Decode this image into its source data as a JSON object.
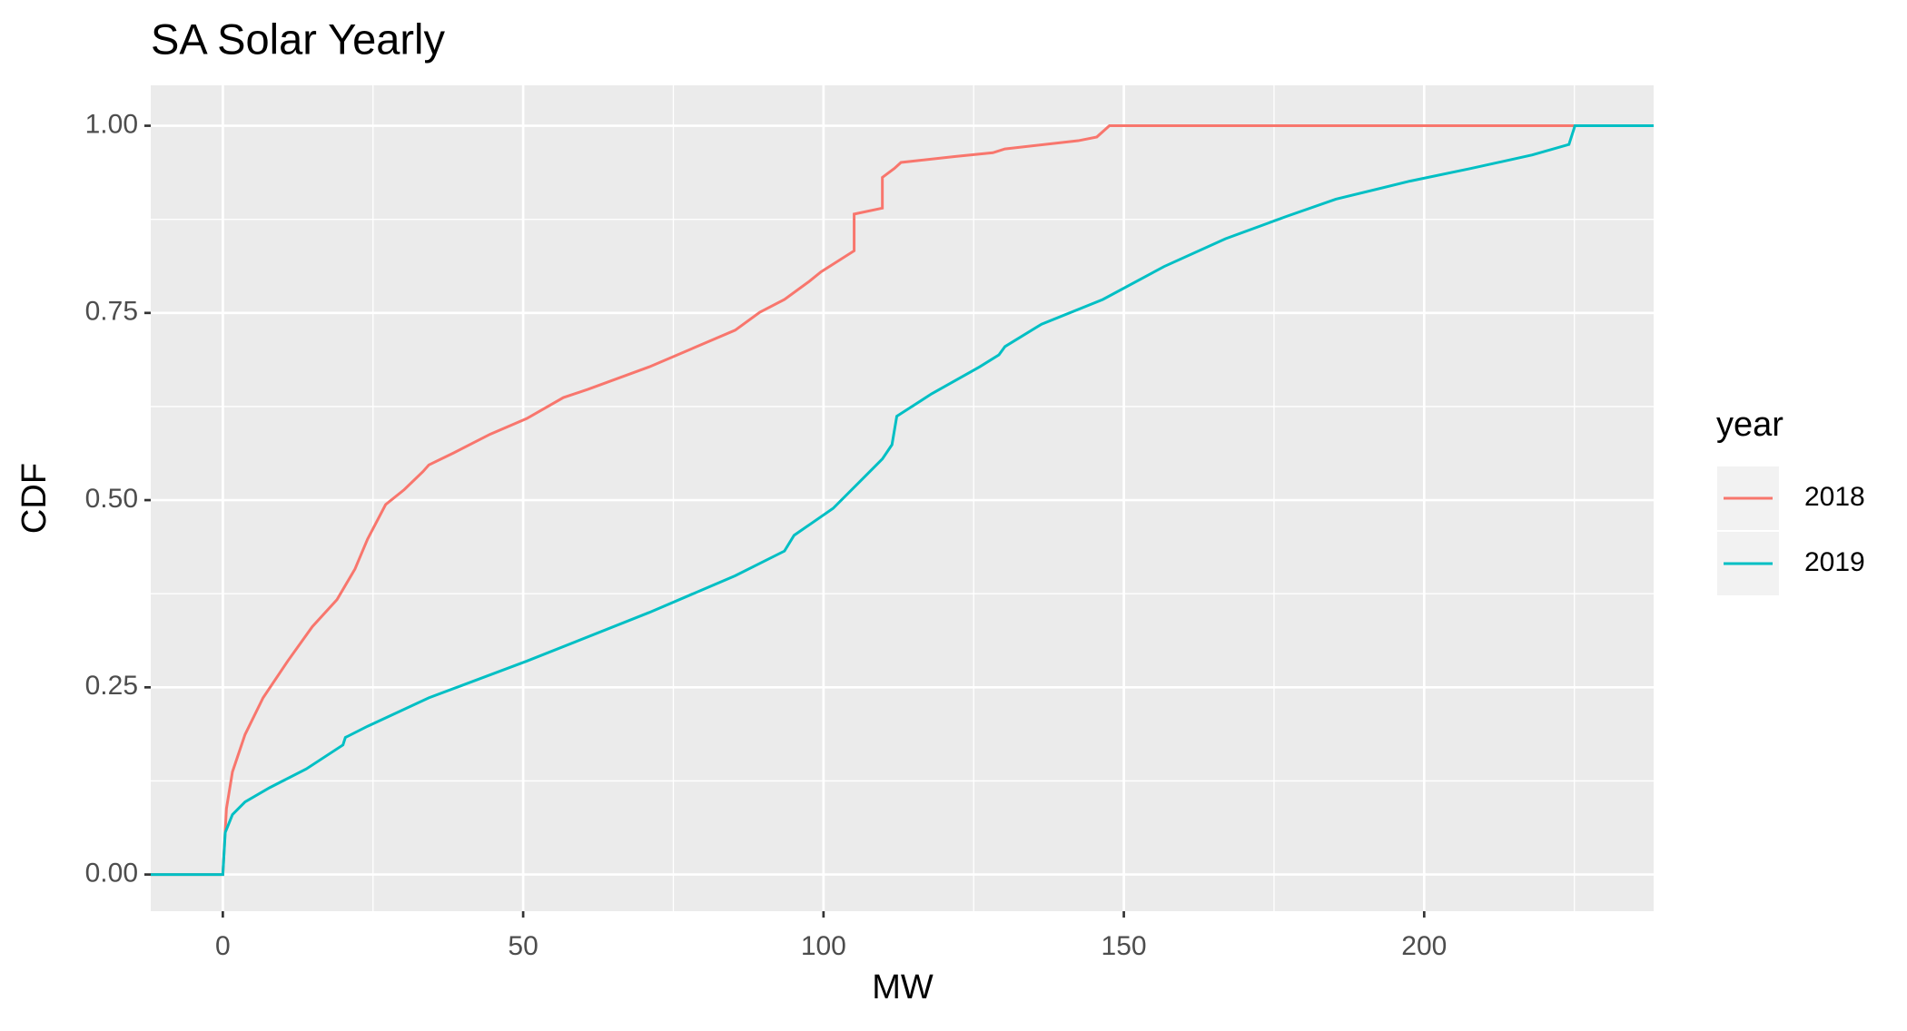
{
  "chart_data": {
    "type": "line",
    "title": "SA Solar Yearly",
    "x_label": "MW",
    "y_label": "CDF",
    "xlim": [
      -12,
      238.2
    ],
    "ylim": [
      -0.049,
      1.054
    ],
    "xticks": [
      0,
      50,
      100,
      150,
      200
    ],
    "yticks": [
      {
        "value": 0,
        "label": "0.00"
      },
      {
        "value": 0.25,
        "label": "0.25"
      },
      {
        "value": 0.5,
        "label": "0.50"
      },
      {
        "value": 0.75,
        "label": "0.75"
      },
      {
        "value": 1,
        "label": "1.00"
      }
    ],
    "xminor": [
      25,
      75,
      125,
      175,
      225
    ],
    "yminor": [
      0.125,
      0.375,
      0.625,
      0.875
    ],
    "grid": true,
    "legend_title": "year",
    "legend_position": "right",
    "series": [
      {
        "name": "2018",
        "color": "#F8766D",
        "x": [
          -12,
          0,
          0.6,
          1.6,
          3.7,
          6.7,
          10.8,
          14.9,
          19,
          22,
          24.1,
          27.1,
          30.2,
          33.3,
          34.3,
          38.4,
          44.5,
          50.6,
          56.7,
          60.8,
          71,
          85.3,
          89.4,
          93.5,
          97.6,
          99.6,
          105.1,
          105.1,
          109.8,
          109.8,
          111.8,
          112.9,
          122,
          128.2,
          130.2,
          142.4,
          145.5,
          147.6,
          238.2
        ],
        "values": [
          0,
          0,
          0.088,
          0.137,
          0.187,
          0.236,
          0.285,
          0.331,
          0.367,
          0.408,
          0.448,
          0.494,
          0.514,
          0.538,
          0.547,
          0.563,
          0.588,
          0.609,
          0.637,
          0.648,
          0.678,
          0.727,
          0.751,
          0.768,
          0.792,
          0.805,
          0.833,
          0.882,
          0.89,
          0.931,
          0.943,
          0.951,
          0.959,
          0.964,
          0.969,
          0.98,
          0.985,
          1,
          1
        ]
      },
      {
        "name": "2019",
        "color": "#00BFC4",
        "x": [
          -12,
          0,
          0.4,
          1.6,
          3.7,
          7.8,
          13.9,
          20,
          20.4,
          24.1,
          34.3,
          50.6,
          71,
          85.3,
          93.5,
          95.1,
          101.6,
          106.7,
          109.8,
          111.4,
          112.2,
          118,
          126,
          129.2,
          130.2,
          136.3,
          146.5,
          156.7,
          166.9,
          177.1,
          185.3,
          197.6,
          207.8,
          218,
          224.1,
          225.1,
          238.2
        ],
        "values": [
          0,
          0,
          0.056,
          0.08,
          0.097,
          0.116,
          0.141,
          0.173,
          0.183,
          0.198,
          0.236,
          0.285,
          0.35,
          0.399,
          0.432,
          0.453,
          0.489,
          0.53,
          0.555,
          0.574,
          0.612,
          0.642,
          0.678,
          0.694,
          0.705,
          0.735,
          0.768,
          0.812,
          0.849,
          0.879,
          0.902,
          0.926,
          0.943,
          0.961,
          0.975,
          1,
          1
        ]
      }
    ]
  }
}
